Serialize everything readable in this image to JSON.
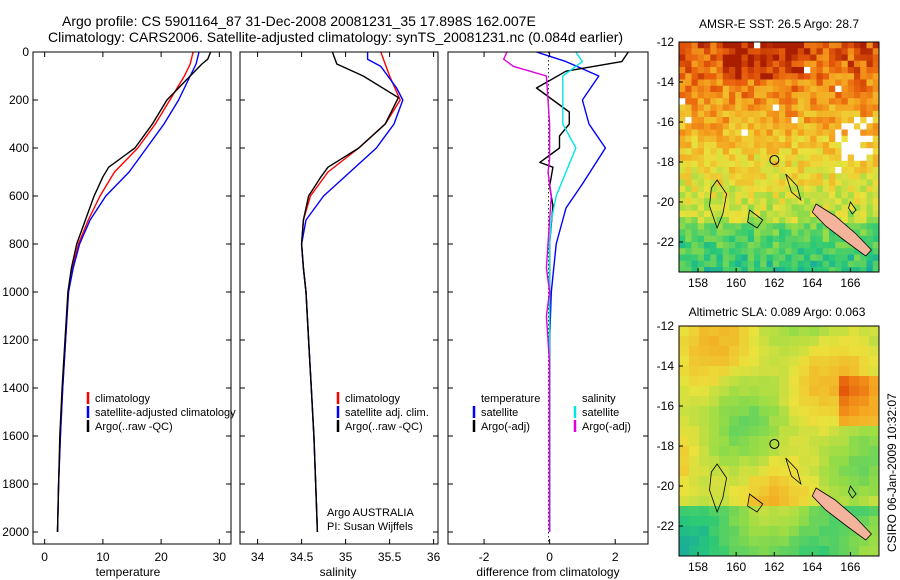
{
  "header": {
    "line1": "Argo profile: CS 5901164_87 31-Dec-2008 20081231_35 17.898S 162.007E",
    "line2": "Climatology: CARS2006. Satellite-adjusted climatology: synTS_20081231.nc (0.084d earlier)"
  },
  "colors": {
    "climatology": "#ff0000",
    "satellite": "#0000ff",
    "argo": "#000000",
    "temp_satellite": "#0000ff",
    "sal_satellite": "#00e5e5",
    "sal_argo": "#e000e0",
    "coast": "#000000",
    "island_fill": "#f4b49b"
  },
  "chart_data": [
    {
      "type": "line",
      "panel": "temperature",
      "xlabel": "temperature",
      "ylabel": "",
      "xlim": [
        -2,
        32
      ],
      "ylim": [
        0,
        2050
      ],
      "y_reversed": true,
      "xticks": [
        0,
        10,
        20,
        30
      ],
      "yticks": [
        0,
        200,
        400,
        600,
        800,
        1000,
        1200,
        1400,
        1600,
        1800,
        2000
      ],
      "legend": {
        "position": "bottom-right",
        "entries": [
          "climatology",
          "satellite-adjusted climatology",
          "Argo(..raw -QC)"
        ]
      },
      "series": [
        {
          "name": "climatology",
          "color_key": "climatology",
          "points": [
            [
              25.5,
              0
            ],
            [
              25.0,
              50
            ],
            [
              24.0,
              100
            ],
            [
              21.5,
              200
            ],
            [
              19.0,
              300
            ],
            [
              16.0,
              400
            ],
            [
              12.0,
              500
            ],
            [
              9.5,
              600
            ],
            [
              7.5,
              700
            ],
            [
              5.8,
              800
            ],
            [
              4.8,
              900
            ],
            [
              4.1,
              1000
            ],
            [
              3.6,
              1200
            ],
            [
              3.1,
              1400
            ],
            [
              2.7,
              1600
            ],
            [
              2.4,
              1800
            ],
            [
              2.2,
              2000
            ]
          ]
        },
        {
          "name": "satellite-adjusted climatology",
          "color_key": "satellite",
          "points": [
            [
              26.5,
              0
            ],
            [
              26.0,
              50
            ],
            [
              25.0,
              100
            ],
            [
              23.0,
              200
            ],
            [
              20.5,
              300
            ],
            [
              17.5,
              400
            ],
            [
              14.5,
              500
            ],
            [
              10.5,
              600
            ],
            [
              7.8,
              700
            ],
            [
              6.0,
              800
            ],
            [
              4.9,
              900
            ],
            [
              4.1,
              1000
            ],
            [
              3.6,
              1200
            ],
            [
              3.1,
              1400
            ],
            [
              2.7,
              1600
            ],
            [
              2.4,
              1800
            ],
            [
              2.2,
              2000
            ]
          ]
        },
        {
          "name": "Argo(..raw -QC)",
          "color_key": "argo",
          "points": [
            [
              28.5,
              0
            ],
            [
              28.0,
              30
            ],
            [
              27.0,
              50
            ],
            [
              25.0,
              100
            ],
            [
              21.0,
              200
            ],
            [
              18.5,
              300
            ],
            [
              15.5,
              400
            ],
            [
              11.0,
              480
            ],
            [
              10.0,
              520
            ],
            [
              8.5,
              600
            ],
            [
              7.0,
              700
            ],
            [
              5.5,
              800
            ],
            [
              4.6,
              900
            ],
            [
              4.0,
              1000
            ],
            [
              3.5,
              1200
            ],
            [
              3.0,
              1400
            ],
            [
              2.6,
              1600
            ],
            [
              2.4,
              1800
            ],
            [
              2.2,
              2000
            ]
          ]
        }
      ]
    },
    {
      "type": "line",
      "panel": "salinity",
      "xlabel": "salinity",
      "ylabel": "",
      "xlim": [
        33.8,
        36.05
      ],
      "ylim": [
        0,
        2050
      ],
      "y_reversed": true,
      "xticks": [
        34,
        34.5,
        35,
        35.5,
        36
      ],
      "legend": {
        "position": "bottom-right",
        "entries": [
          "climatology",
          "satellite adj. clim.",
          "Argo(..raw -QC)"
        ]
      },
      "annotation": [
        "Argo AUSTRALIA",
        "PI: Susan Wijffels"
      ],
      "series": [
        {
          "name": "climatology",
          "color_key": "climatology",
          "points": [
            [
              35.4,
              0
            ],
            [
              35.45,
              50
            ],
            [
              35.5,
              100
            ],
            [
              35.62,
              200
            ],
            [
              35.45,
              300
            ],
            [
              35.15,
              400
            ],
            [
              34.8,
              500
            ],
            [
              34.6,
              600
            ],
            [
              34.52,
              700
            ],
            [
              34.5,
              800
            ],
            [
              34.52,
              900
            ],
            [
              34.55,
              1000
            ],
            [
              34.58,
              1200
            ],
            [
              34.61,
              1400
            ],
            [
              34.64,
              1600
            ],
            [
              34.66,
              1800
            ],
            [
              34.68,
              2000
            ]
          ]
        },
        {
          "name": "satellite adj. clim.",
          "color_key": "satellite",
          "points": [
            [
              35.25,
              0
            ],
            [
              35.25,
              30
            ],
            [
              35.4,
              60
            ],
            [
              35.58,
              150
            ],
            [
              35.65,
              200
            ],
            [
              35.55,
              300
            ],
            [
              35.35,
              400
            ],
            [
              35.05,
              500
            ],
            [
              34.75,
              600
            ],
            [
              34.55,
              700
            ],
            [
              34.5,
              800
            ],
            [
              34.52,
              900
            ],
            [
              34.55,
              1000
            ],
            [
              34.58,
              1200
            ],
            [
              34.61,
              1400
            ],
            [
              34.64,
              1600
            ],
            [
              34.66,
              1800
            ],
            [
              34.68,
              2000
            ]
          ]
        },
        {
          "name": "Argo(..raw -QC)",
          "color_key": "argo",
          "points": [
            [
              34.85,
              0
            ],
            [
              34.9,
              50
            ],
            [
              35.2,
              100
            ],
            [
              35.6,
              190
            ],
            [
              35.45,
              300
            ],
            [
              35.15,
              400
            ],
            [
              34.8,
              480
            ],
            [
              34.72,
              520
            ],
            [
              34.58,
              600
            ],
            [
              34.52,
              700
            ],
            [
              34.5,
              800
            ],
            [
              34.52,
              900
            ],
            [
              34.55,
              1000
            ],
            [
              34.58,
              1200
            ],
            [
              34.61,
              1400
            ],
            [
              34.64,
              1600
            ],
            [
              34.66,
              1800
            ],
            [
              34.68,
              2000
            ]
          ]
        }
      ]
    },
    {
      "type": "line",
      "panel": "difference",
      "xlabel": "difference from climatology",
      "ylabel": "",
      "xlim": [
        -3.1,
        3.0
      ],
      "ylim": [
        0,
        2050
      ],
      "y_reversed": true,
      "xticks": [
        -2,
        0,
        2
      ],
      "zero_line": "dotted",
      "legend": {
        "position": "bottom",
        "groups": [
          {
            "heading": "temperature",
            "entries": [
              "satellite",
              "Argo(-adj)"
            ]
          },
          {
            "heading": "salinity",
            "entries": [
              "satellite",
              "Argo(-adj)"
            ]
          }
        ]
      },
      "series": [
        {
          "name": "satellite",
          "group": "temperature",
          "color_key": "temp_satellite",
          "points": [
            [
              -0.4,
              0
            ],
            [
              0.5,
              40
            ],
            [
              1.5,
              100
            ],
            [
              1.0,
              200
            ],
            [
              1.2,
              300
            ],
            [
              1.7,
              400
            ],
            [
              1.0,
              550
            ],
            [
              0.5,
              650
            ],
            [
              0.2,
              800
            ],
            [
              0.05,
              1000
            ],
            [
              0,
              1200
            ],
            [
              0,
              1600
            ],
            [
              0,
              2000
            ]
          ]
        },
        {
          "name": "Argo(-adj)",
          "group": "temperature",
          "color_key": "argo",
          "points": [
            [
              2.4,
              0
            ],
            [
              2.2,
              40
            ],
            [
              0.5,
              80
            ],
            [
              -0.4,
              150
            ],
            [
              0.6,
              250
            ],
            [
              0.6,
              300
            ],
            [
              0.3,
              350
            ],
            [
              0.3,
              400
            ],
            [
              -0.3,
              460
            ],
            [
              0.1,
              480
            ],
            [
              0.0,
              560
            ],
            [
              0.1,
              640
            ],
            [
              0.0,
              800
            ],
            [
              0,
              1000
            ],
            [
              0,
              1400
            ],
            [
              0,
              2000
            ]
          ]
        },
        {
          "name": "satellite",
          "group": "salinity",
          "color_key": "sal_satellite",
          "points": [
            [
              0.8,
              0
            ],
            [
              1.0,
              40
            ],
            [
              0.4,
              100
            ],
            [
              0.4,
              200
            ],
            [
              0.4,
              300
            ],
            [
              0.8,
              400
            ],
            [
              0.5,
              500
            ],
            [
              0.2,
              600
            ],
            [
              0.05,
              700
            ],
            [
              0,
              800
            ],
            [
              0,
              1000
            ],
            [
              0,
              1400
            ],
            [
              0,
              2000
            ]
          ]
        },
        {
          "name": "Argo(-adj)",
          "group": "salinity",
          "color_key": "sal_argo",
          "points": [
            [
              -1.3,
              0
            ],
            [
              -1.4,
              30
            ],
            [
              -1.1,
              60
            ],
            [
              -0.6,
              80
            ],
            [
              -0.1,
              100
            ],
            [
              -0.05,
              200
            ],
            [
              0.0,
              300
            ],
            [
              0.0,
              450
            ],
            [
              -0.05,
              500
            ],
            [
              0.05,
              600
            ],
            [
              0.0,
              700
            ],
            [
              -0.1,
              900
            ],
            [
              0,
              1000
            ],
            [
              -0.1,
              1100
            ],
            [
              0,
              1300
            ],
            [
              0,
              2000
            ]
          ]
        }
      ]
    },
    {
      "type": "heatmap",
      "panel": "sst_map",
      "title": "AMSR-E SST: 26.5 Argo: 28.7",
      "xlim": [
        157,
        167.5
      ],
      "ylim": [
        -23.5,
        -12
      ],
      "xticks": [
        158,
        160,
        162,
        164,
        166
      ],
      "yticks": [
        -12,
        -14,
        -16,
        -18,
        -20,
        -22
      ],
      "profile_marker": {
        "lon": 162.007,
        "lat": -17.898
      },
      "coast": true
    },
    {
      "type": "heatmap",
      "panel": "sla_map",
      "title": "Altimetric SLA: 0.089 Argo: 0.063",
      "xlim": [
        157,
        167.5
      ],
      "ylim": [
        -23.5,
        -12
      ],
      "xticks": [
        158,
        160,
        162,
        164,
        166
      ],
      "yticks": [
        -12,
        -14,
        -16,
        -18,
        -20,
        -22
      ],
      "profile_marker": {
        "lon": 162.007,
        "lat": -17.898
      },
      "coast": true
    }
  ],
  "side_label": "CSIRO 06-Jan-2009 10:32:07"
}
